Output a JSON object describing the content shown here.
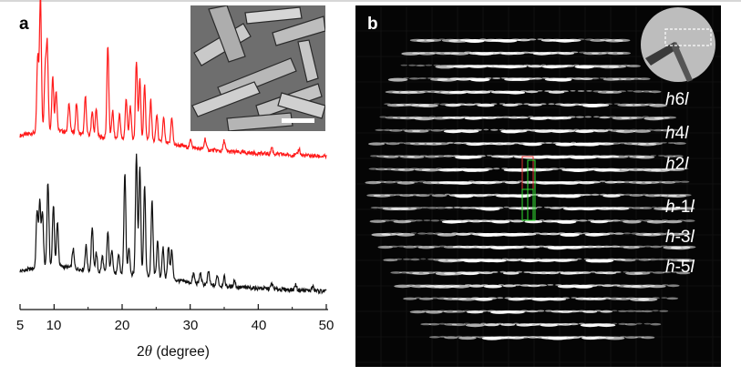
{
  "figure": {
    "panel_a_label": "a",
    "panel_b_label": "b",
    "panel_a_description_icons": [
      "sem-image-icon",
      "scale-bar-icon"
    ],
    "panel_b_description_icons": [
      "diffraction-pattern-icon",
      "crystal-inset-icon"
    ]
  },
  "chart_data": {
    "type": "line",
    "xlabel_prefix": "2",
    "xlabel_symbol": "θ",
    "xlabel_suffix": " (degree)",
    "xlim": [
      5,
      50
    ],
    "xticks": [
      5,
      10,
      20,
      30,
      40,
      50
    ],
    "xtick_labels": [
      "5",
      "10",
      "20",
      "30",
      "40",
      "50"
    ],
    "series": [
      {
        "color": "#ff1a1a",
        "peaks": [
          [
            7.6,
            0.55
          ],
          [
            8.0,
            1.0
          ],
          [
            8.7,
            0.45
          ],
          [
            9.0,
            0.62
          ],
          [
            9.8,
            0.4
          ],
          [
            10.3,
            0.3
          ],
          [
            12.2,
            0.22
          ],
          [
            13.3,
            0.22
          ],
          [
            14.6,
            0.28
          ],
          [
            15.6,
            0.18
          ],
          [
            16.2,
            0.2
          ],
          [
            17.9,
            0.68
          ],
          [
            18.6,
            0.2
          ],
          [
            19.6,
            0.18
          ],
          [
            20.6,
            0.3
          ],
          [
            21.2,
            0.24
          ],
          [
            22.1,
            0.58
          ],
          [
            22.6,
            0.45
          ],
          [
            23.3,
            0.4
          ],
          [
            24.2,
            0.3
          ],
          [
            25.1,
            0.2
          ],
          [
            26.1,
            0.18
          ],
          [
            27.3,
            0.2
          ],
          [
            30.1,
            0.06
          ],
          [
            32.2,
            0.08
          ],
          [
            35.0,
            0.08
          ],
          [
            42.0,
            0.05
          ],
          [
            46.0,
            0.05
          ]
        ]
      },
      {
        "color": "#111111",
        "peaks": [
          [
            7.5,
            0.42
          ],
          [
            7.9,
            0.48
          ],
          [
            8.3,
            0.4
          ],
          [
            9.1,
            0.62
          ],
          [
            9.9,
            0.45
          ],
          [
            10.5,
            0.32
          ],
          [
            12.8,
            0.14
          ],
          [
            14.7,
            0.18
          ],
          [
            15.6,
            0.32
          ],
          [
            16.2,
            0.14
          ],
          [
            17.1,
            0.12
          ],
          [
            17.9,
            0.3
          ],
          [
            18.5,
            0.18
          ],
          [
            19.5,
            0.14
          ],
          [
            20.4,
            0.73
          ],
          [
            21.0,
            0.2
          ],
          [
            22.1,
            0.88
          ],
          [
            22.6,
            0.8
          ],
          [
            23.3,
            0.65
          ],
          [
            24.4,
            0.55
          ],
          [
            25.2,
            0.26
          ],
          [
            26.0,
            0.22
          ],
          [
            26.8,
            0.24
          ],
          [
            27.3,
            0.22
          ],
          [
            30.5,
            0.07
          ],
          [
            31.5,
            0.08
          ],
          [
            32.7,
            0.1
          ],
          [
            34.0,
            0.08
          ],
          [
            35.0,
            0.07
          ],
          [
            36.5,
            0.05
          ],
          [
            42.0,
            0.04
          ],
          [
            45.5,
            0.04
          ],
          [
            48.0,
            0.03
          ]
        ]
      }
    ]
  },
  "diffraction": {
    "row_labels": [
      {
        "pre": "h",
        "mid": "6",
        "post": "l"
      },
      {
        "pre": "h",
        "mid": "4",
        "post": "l"
      },
      {
        "pre": "h",
        "mid": "2",
        "post": "l"
      },
      {
        "pre": "h",
        "mid": "-1",
        "post": "l"
      },
      {
        "pre": "h",
        "mid": "-3",
        "post": "l"
      },
      {
        "pre": "h",
        "mid": "-5",
        "post": "l"
      }
    ]
  }
}
